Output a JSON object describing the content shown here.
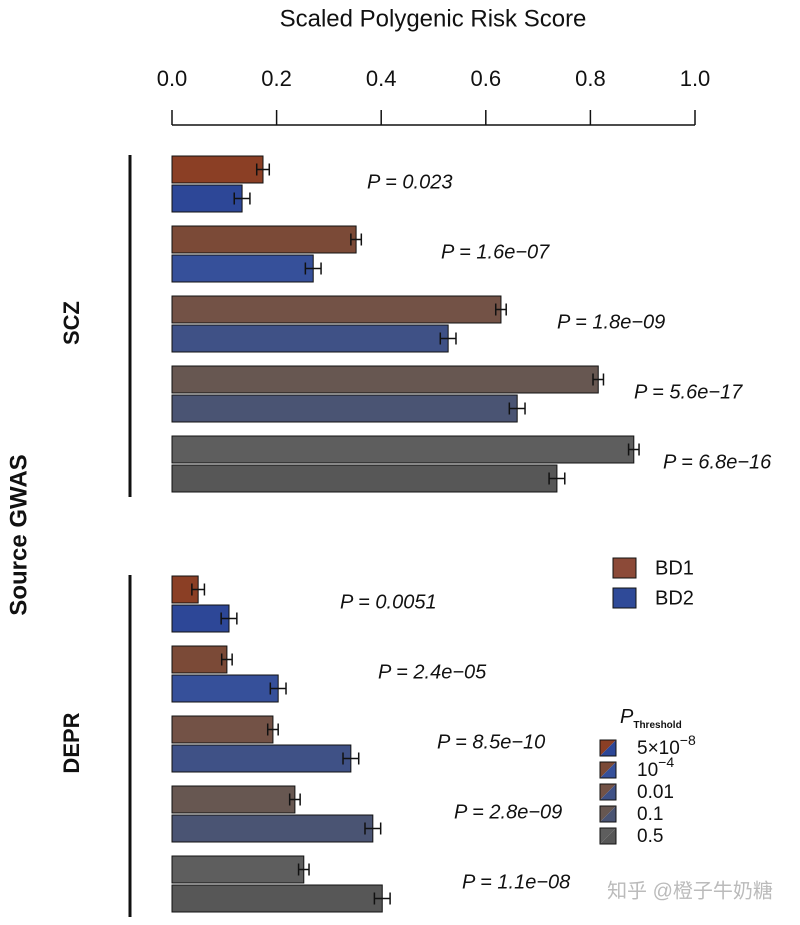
{
  "chart_data": {
    "type": "bar",
    "orientation": "horizontal",
    "title": "Scaled Polygenic Risk Score",
    "y_label": "Source GWAS",
    "xlim": [
      0,
      1
    ],
    "xticks": [
      {
        "value": 0,
        "label": "0.0"
      },
      {
        "value": 0.2,
        "label": "0.2"
      },
      {
        "value": 0.4,
        "label": "0.4"
      },
      {
        "value": 0.6,
        "label": "0.6"
      },
      {
        "value": 0.8,
        "label": "0.8"
      },
      {
        "value": 1,
        "label": "1.0"
      }
    ],
    "series": [
      {
        "name": "BD1",
        "color": "#8c4a38",
        "shades": [
          "#8b3f25",
          "#7b4a37",
          "#735246",
          "#675751",
          "#5e5e5e"
        ]
      },
      {
        "name": "BD2",
        "color": "#2f4a98",
        "shades": [
          "#2d4797",
          "#36509a",
          "#3f5186",
          "#4a5473",
          "#575757"
        ]
      }
    ],
    "thresholds": {
      "title": "P",
      "title_sub": "Threshold",
      "labels": [
        {
          "base": "5×10",
          "exp": "−8"
        },
        {
          "base": "10",
          "exp": "−4"
        },
        "0.01",
        "0.1",
        "0.5"
      ]
    },
    "groups": [
      {
        "name": "SCZ",
        "annotations": [
          "P = 0.023",
          "P = 1.6e−07",
          "P = 1.8e−09",
          "P = 5.6e−17",
          "P = 6.8e−16"
        ],
        "bars": [
          {
            "values": [
              0.174,
              0.352,
              0.629,
              0.815,
              0.883
            ],
            "errors": [
              0.012,
              0.01,
              0.01,
              0.01,
              0.01
            ]
          },
          {
            "values": [
              0.134,
              0.27,
              0.528,
              0.66,
              0.736
            ],
            "errors": [
              0.015,
              0.015,
              0.015,
              0.015,
              0.015
            ]
          }
        ]
      },
      {
        "name": "DEPR",
        "annotations": [
          "P = 0.0051",
          "P = 2.4e−05",
          "P = 8.5e−10",
          "P = 2.8e−09",
          "P = 1.1e−08"
        ],
        "bars": [
          {
            "values": [
              0.05,
              0.105,
              0.193,
              0.235,
              0.252
            ],
            "errors": [
              0.012,
              0.01,
              0.01,
              0.01,
              0.01
            ]
          },
          {
            "values": [
              0.109,
              0.203,
              0.342,
              0.384,
              0.402
            ],
            "errors": [
              0.015,
              0.015,
              0.015,
              0.015,
              0.015
            ]
          }
        ]
      }
    ],
    "watermark": "知乎 @橙子牛奶糖"
  }
}
